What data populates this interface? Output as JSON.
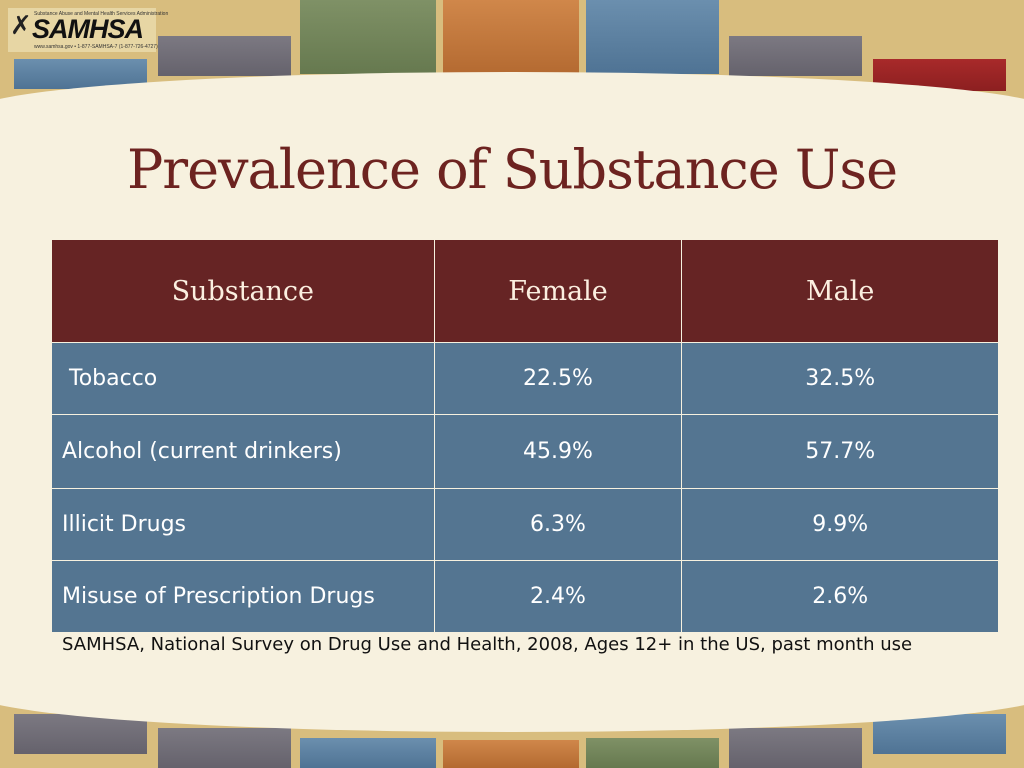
{
  "logo": {
    "name": "SAMHSA",
    "tagline": "Substance Abuse and Mental Health Services Administration",
    "contact": "www.samhsa.gov • 1-877-SAMHSA-7 (1-877-726-4727)"
  },
  "title": "Prevalence of Substance Use",
  "table": {
    "headers": [
      "Substance",
      "Female",
      "Male"
    ],
    "rows": [
      {
        "substance": " Tobacco",
        "female": "22.5%",
        "male": "32.5%"
      },
      {
        "substance": "Alcohol (current drinkers)",
        "female": "45.9%",
        "male": "57.7%"
      },
      {
        "substance": "Illicit Drugs",
        "female": "6.3%",
        "male": "9.9%"
      },
      {
        "substance": "Misuse of Prescription Drugs",
        "female": "2.4%",
        "male": "2.6%"
      }
    ]
  },
  "source": "SAMHSA, National Survey on Drug Use and Health, 2008, Ages 12+ in the US, past month use",
  "colors": {
    "header_bg": "#662424",
    "row_bg": "#547591",
    "title": "#6d2320",
    "panel": "#f7f1df"
  }
}
